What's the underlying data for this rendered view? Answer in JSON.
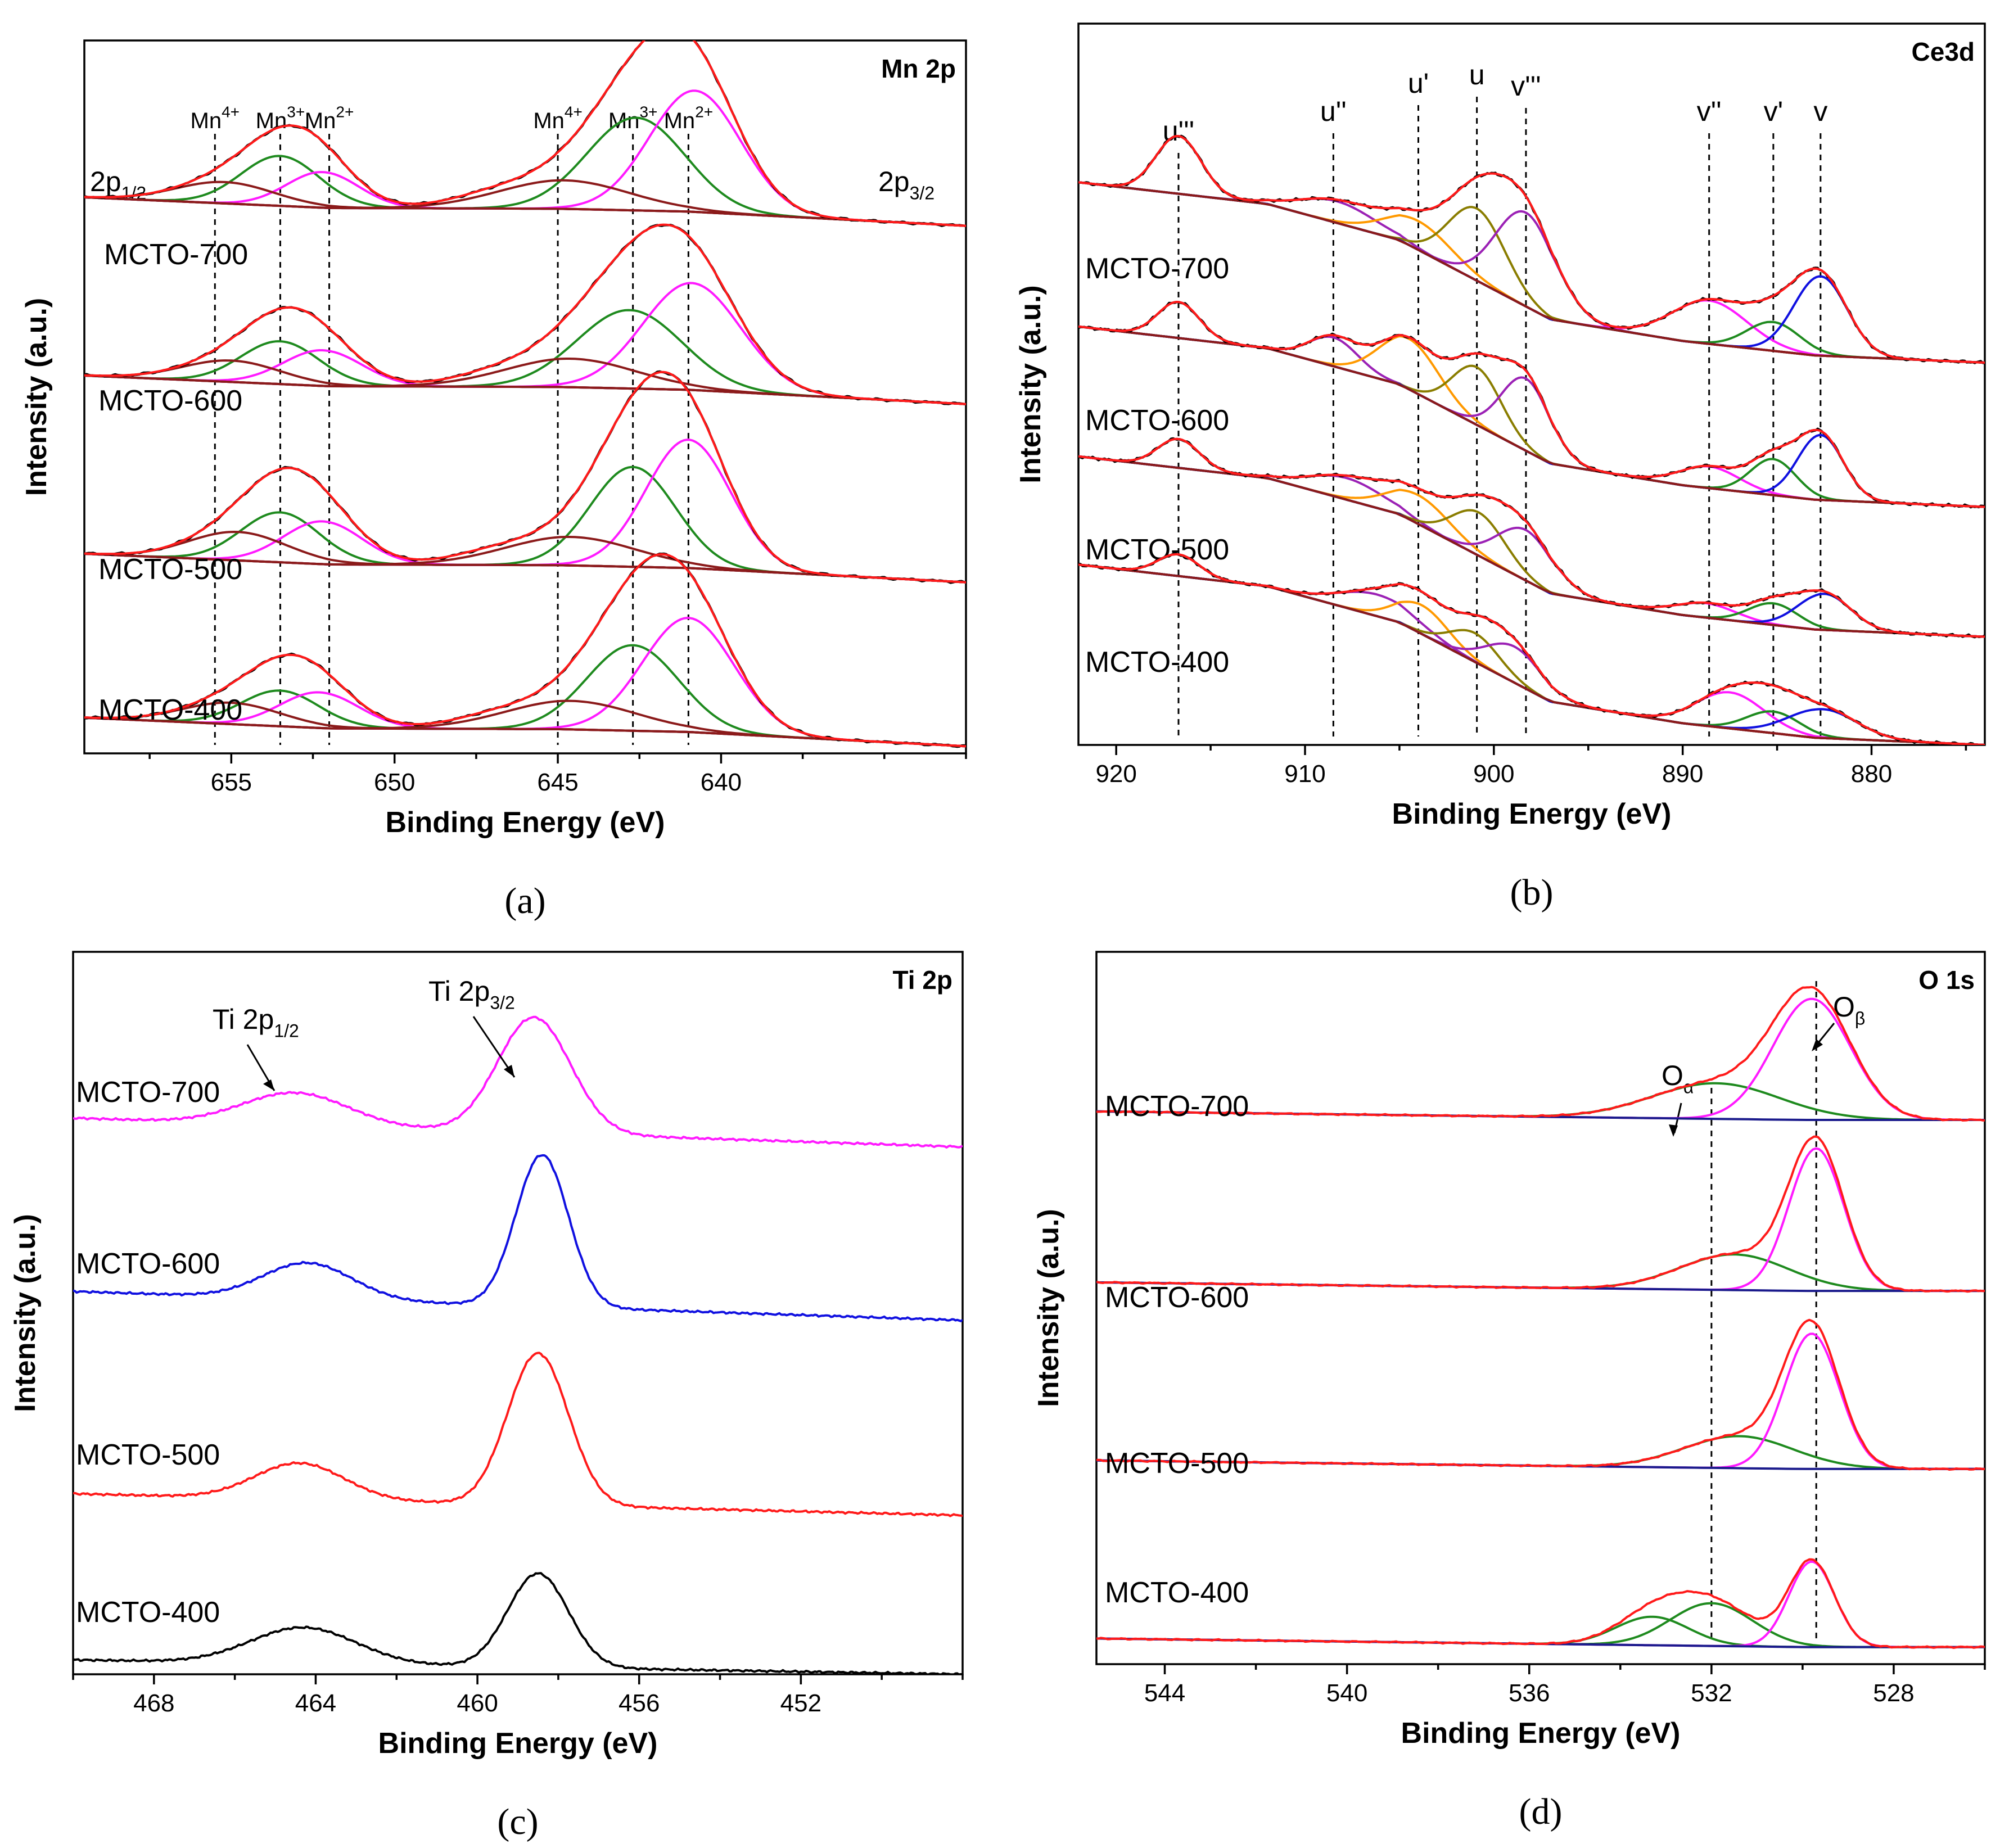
{
  "colors": {
    "black": "#000000",
    "red": "#ff1a1a",
    "green": "#1e8a1e",
    "magenta": "#ff1aff",
    "brown": "#8b1a1a",
    "orange": "#ff9900",
    "olive": "#8a7d00",
    "purple": "#9b21b5",
    "blue": "#1010e0",
    "darkblue": "#1a1a8c",
    "annot_red": "#e8000b"
  },
  "chart_data": [
    {
      "id": "a",
      "type": "line",
      "title": "Mn 2p",
      "caption": "(a)",
      "xlabel": "Binding Energy (eV)",
      "ylabel": "Intensity (a.u.)",
      "xlim": [
        659.5,
        632.5
      ],
      "ylim": [
        0,
        100
      ],
      "xticks": [
        655,
        650,
        645,
        640
      ],
      "samples": [
        "MCTO-700",
        "MCTO-600",
        "MCTO-500",
        "MCTO-400"
      ],
      "offsets": [
        76,
        51,
        26,
        3
      ],
      "annotations": [
        {
          "base": "Mn",
          "sup": "4+",
          "x": 655.5
        },
        {
          "base": "Mn",
          "sup": "3+",
          "x": 653.5
        },
        {
          "base": "Mn",
          "sup": "2+",
          "x": 652.0
        },
        {
          "base": "Mn",
          "sup": "4+",
          "x": 645.0
        },
        {
          "base": "Mn",
          "sup": "3+",
          "x": 642.7
        },
        {
          "base": "Mn",
          "sup": "2+",
          "x": 641.0
        }
      ],
      "orbital_labels": [
        {
          "base": "2p",
          "sub": "1/2"
        },
        {
          "base": "2p",
          "sub": "3/2"
        }
      ],
      "series": [
        {
          "name": "MCTO-700",
          "baseline": [
            [
              659.5,
              2
            ],
            [
              652,
              0.5
            ],
            [
              645,
              0.4
            ],
            [
              641,
              0
            ],
            [
              632.5,
              -2
            ]
          ],
          "components": [
            {
              "color": "green",
              "center": 653.5,
              "height": 7,
              "width": 1.2
            },
            {
              "color": "magenta",
              "center": 652.2,
              "height": 5,
              "width": 1.1
            },
            {
              "color": "brown",
              "center": 655.2,
              "height": 3,
              "width": 1.5
            },
            {
              "color": "green",
              "center": 642.6,
              "height": 13,
              "width": 1.5
            },
            {
              "color": "magenta",
              "center": 640.8,
              "height": 17,
              "width": 1.4
            },
            {
              "color": "brown",
              "center": 644.8,
              "height": 4,
              "width": 2.0
            }
          ]
        },
        {
          "name": "MCTO-600",
          "baseline": [
            [
              659.5,
              2
            ],
            [
              652,
              0.5
            ],
            [
              645,
              0.4
            ],
            [
              641,
              0
            ],
            [
              632.5,
              -2
            ]
          ],
          "components": [
            {
              "color": "green",
              "center": 653.5,
              "height": 6,
              "width": 1.2
            },
            {
              "color": "magenta",
              "center": 652.2,
              "height": 5,
              "width": 1.2
            },
            {
              "color": "brown",
              "center": 655.0,
              "height": 3,
              "width": 1.5
            },
            {
              "color": "green",
              "center": 642.8,
              "height": 11,
              "width": 1.6
            },
            {
              "color": "magenta",
              "center": 640.9,
              "height": 15,
              "width": 1.5
            },
            {
              "color": "brown",
              "center": 644.6,
              "height": 4,
              "width": 2.0
            }
          ]
        },
        {
          "name": "MCTO-500",
          "baseline": [
            [
              659.5,
              2
            ],
            [
              652,
              0.5
            ],
            [
              645,
              0.4
            ],
            [
              641,
              0
            ],
            [
              632.5,
              -2
            ]
          ],
          "components": [
            {
              "color": "green",
              "center": 653.5,
              "height": 7,
              "width": 1.2
            },
            {
              "color": "magenta",
              "center": 652.2,
              "height": 6,
              "width": 1.2
            },
            {
              "color": "brown",
              "center": 654.8,
              "height": 4,
              "width": 1.5
            },
            {
              "color": "green",
              "center": 642.7,
              "height": 14,
              "width": 1.3
            },
            {
              "color": "magenta",
              "center": 641.0,
              "height": 18,
              "width": 1.3
            },
            {
              "color": "brown",
              "center": 644.6,
              "height": 4,
              "width": 2.0
            }
          ]
        },
        {
          "name": "MCTO-400",
          "baseline": [
            [
              659.5,
              2
            ],
            [
              652,
              0.5
            ],
            [
              645,
              0.4
            ],
            [
              641,
              0
            ],
            [
              632.5,
              -2
            ]
          ],
          "components": [
            {
              "color": "green",
              "center": 653.5,
              "height": 5,
              "width": 1.2
            },
            {
              "color": "magenta",
              "center": 652.3,
              "height": 5,
              "width": 1.2
            },
            {
              "color": "brown",
              "center": 655.0,
              "height": 3,
              "width": 1.5
            },
            {
              "color": "green",
              "center": 642.7,
              "height": 12,
              "width": 1.4
            },
            {
              "color": "magenta",
              "center": 641.0,
              "height": 16,
              "width": 1.4
            },
            {
              "color": "brown",
              "center": 644.6,
              "height": 4,
              "width": 2.0
            }
          ]
        }
      ]
    },
    {
      "id": "b",
      "type": "line",
      "title": "Ce3d",
      "caption": "(b)",
      "xlabel": "Binding Energy (eV)",
      "ylabel": "Intensity (a.u.)",
      "xlim": [
        922,
        874
      ],
      "ylim": [
        0,
        100
      ],
      "xticks": [
        920,
        910,
        900,
        890,
        880
      ],
      "samples": [
        "MCTO-700",
        "MCTO-600",
        "MCTO-500",
        "MCTO-400"
      ],
      "offsets": [
        53,
        33,
        15,
        0
      ],
      "annotations": [
        {
          "label": "u'''",
          "x": 916.7,
          "red": false
        },
        {
          "label": "u''",
          "x": 908.5,
          "red": false
        },
        {
          "label": "u'",
          "x": 904.0,
          "red": true
        },
        {
          "label": "u",
          "x": 900.9,
          "red": false
        },
        {
          "label": "v'''",
          "x": 898.3,
          "red": false
        },
        {
          "label": "v''",
          "x": 888.6,
          "red": false
        },
        {
          "label": "v'",
          "x": 885.2,
          "red": true
        },
        {
          "label": "v",
          "x": 882.7,
          "red": false
        }
      ],
      "series": [
        {
          "name": "MCTO-700",
          "baseline": [
            [
              922,
              25
            ],
            [
              912,
              22
            ],
            [
              905,
              17
            ],
            [
              897,
              6
            ],
            [
              890,
              3
            ],
            [
              883,
              1
            ],
            [
              874,
              0
            ]
          ],
          "components": [
            {
              "color": "brown",
              "center": 916.7,
              "height": 8,
              "width": 1.2
            },
            {
              "color": "purple",
              "center": 908.3,
              "height": 3,
              "width": 2.0
            },
            {
              "color": "orange",
              "center": 904.0,
              "height": 4,
              "width": 1.8
            },
            {
              "color": "olive",
              "center": 900.9,
              "height": 10,
              "width": 1.5
            },
            {
              "color": "purple",
              "center": 898.3,
              "height": 13,
              "width": 1.6
            },
            {
              "color": "magenta",
              "center": 888.6,
              "height": 6,
              "width": 2.0
            },
            {
              "color": "green",
              "center": 885.2,
              "height": 4,
              "width": 1.4
            },
            {
              "color": "blue",
              "center": 882.7,
              "height": 11,
              "width": 1.4
            }
          ]
        },
        {
          "name": "MCTO-600",
          "baseline": [
            [
              922,
              25
            ],
            [
              912,
              22
            ],
            [
              905,
              17
            ],
            [
              897,
              6
            ],
            [
              890,
              3
            ],
            [
              883,
              1
            ],
            [
              874,
              0
            ]
          ],
          "components": [
            {
              "color": "brown",
              "center": 916.7,
              "height": 5,
              "width": 1.1
            },
            {
              "color": "purple",
              "center": 908.5,
              "height": 4,
              "width": 1.3
            },
            {
              "color": "orange",
              "center": 904.5,
              "height": 7,
              "width": 1.6
            },
            {
              "color": "olive",
              "center": 900.9,
              "height": 8,
              "width": 1.3
            },
            {
              "color": "purple",
              "center": 898.3,
              "height": 10,
              "width": 1.3
            },
            {
              "color": "magenta",
              "center": 888.6,
              "height": 3,
              "width": 1.6
            },
            {
              "color": "green",
              "center": 885.2,
              "height": 5,
              "width": 1.2
            },
            {
              "color": "blue",
              "center": 882.7,
              "height": 9,
              "width": 1.2
            }
          ]
        },
        {
          "name": "MCTO-500",
          "baseline": [
            [
              922,
              25
            ],
            [
              912,
              22
            ],
            [
              905,
              17
            ],
            [
              897,
              6
            ],
            [
              890,
              3
            ],
            [
              883,
              1
            ],
            [
              874,
              0
            ]
          ],
          "components": [
            {
              "color": "brown",
              "center": 916.7,
              "height": 4,
              "width": 1.1
            },
            {
              "color": "purple",
              "center": 907.8,
              "height": 3,
              "width": 2.0
            },
            {
              "color": "orange",
              "center": 904.0,
              "height": 4,
              "width": 1.7
            },
            {
              "color": "olive",
              "center": 900.8,
              "height": 6,
              "width": 1.4
            },
            {
              "color": "purple",
              "center": 898.3,
              "height": 7,
              "width": 1.5
            },
            {
              "color": "magenta",
              "center": 888.8,
              "height": 2,
              "width": 1.6
            },
            {
              "color": "green",
              "center": 885.2,
              "height": 3,
              "width": 1.3
            },
            {
              "color": "blue",
              "center": 882.5,
              "height": 5,
              "width": 1.4
            }
          ]
        },
        {
          "name": "MCTO-400",
          "baseline": [
            [
              922,
              25
            ],
            [
              912,
              22
            ],
            [
              905,
              17
            ],
            [
              897,
              6
            ],
            [
              890,
              3
            ],
            [
              883,
              1
            ],
            [
              874,
              0
            ]
          ],
          "components": [
            {
              "color": "brown",
              "center": 916.7,
              "height": 3,
              "width": 1.1
            },
            {
              "color": "purple",
              "center": 906.2,
              "height": 3,
              "width": 2.0
            },
            {
              "color": "orange",
              "center": 903.8,
              "height": 4,
              "width": 1.4
            },
            {
              "color": "olive",
              "center": 901.0,
              "height": 4,
              "width": 1.3
            },
            {
              "color": "purple",
              "center": 898.9,
              "height": 5,
              "width": 1.5
            },
            {
              "color": "magenta",
              "center": 887.5,
              "height": 5,
              "width": 1.8
            },
            {
              "color": "green",
              "center": 885.2,
              "height": 3,
              "width": 1.4
            },
            {
              "color": "blue",
              "center": 882.6,
              "height": 4,
              "width": 1.8
            }
          ]
        }
      ]
    },
    {
      "id": "c",
      "type": "line",
      "title": "Ti 2p",
      "caption": "(c)",
      "xlabel": "Binding Energy (eV)",
      "ylabel": "Intensity (a.u.)",
      "xlim": [
        470,
        448
      ],
      "ylim": [
        0,
        100
      ],
      "xticks": [
        468,
        464,
        460,
        456,
        452
      ],
      "peak_labels": [
        {
          "base": "Ti 2p",
          "sub": "1/2"
        },
        {
          "base": "Ti 2p",
          "sub": "3/2"
        }
      ],
      "series": [
        {
          "name": "MCTO-700",
          "color": "magenta",
          "offset": 73,
          "start": 77,
          "peaks": [
            {
              "center": 464.5,
              "height": 4.5,
              "width": 1.3
            },
            {
              "center": 458.6,
              "height": 16,
              "width": 0.9
            }
          ]
        },
        {
          "name": "MCTO-600",
          "color": "blue",
          "offset": 49,
          "start": 53,
          "peaks": [
            {
              "center": 464.2,
              "height": 5,
              "width": 1.1
            },
            {
              "center": 458.4,
              "height": 21,
              "width": 0.65
            }
          ]
        },
        {
          "name": "MCTO-500",
          "color": "red",
          "offset": 22,
          "start": 25,
          "peaks": [
            {
              "center": 464.4,
              "height": 5,
              "width": 1.1
            },
            {
              "center": 458.5,
              "height": 21,
              "width": 0.75
            }
          ]
        },
        {
          "name": "MCTO-400",
          "color": "black",
          "offset": 0,
          "start": 2,
          "peaks": [
            {
              "center": 464.3,
              "height": 5,
              "width": 1.3
            },
            {
              "center": 458.5,
              "height": 13,
              "width": 0.75
            }
          ]
        }
      ]
    },
    {
      "id": "d",
      "type": "line",
      "title": "O 1s",
      "caption": "(d)",
      "xlabel": "Binding Energy (eV)",
      "ylabel": "Intensity (a.u.)",
      "xlim": [
        545.5,
        526
      ],
      "ylim": [
        0,
        100
      ],
      "xticks": [
        544,
        540,
        536,
        532,
        528
      ],
      "markers": [
        {
          "base": "O",
          "sub": "α",
          "x": 532.0
        },
        {
          "base": "O",
          "sub": "β",
          "x": 529.7
        }
      ],
      "series": [
        {
          "name": "MCTO-700",
          "offset": 76,
          "components": [
            {
              "color": "green",
              "center": 531.9,
              "height": 5,
              "width": 1.4
            },
            {
              "color": "magenta",
              "center": 529.8,
              "height": 17,
              "width": 0.85
            }
          ]
        },
        {
          "name": "MCTO-600",
          "offset": 52,
          "components": [
            {
              "color": "green",
              "center": 531.5,
              "height": 5,
              "width": 1.2
            },
            {
              "color": "magenta",
              "center": 529.7,
              "height": 20,
              "width": 0.6
            }
          ]
        },
        {
          "name": "MCTO-500",
          "offset": 27,
          "components": [
            {
              "color": "green",
              "center": 531.4,
              "height": 4.5,
              "width": 1.2
            },
            {
              "color": "magenta",
              "center": 529.8,
              "height": 19,
              "width": 0.6
            }
          ]
        },
        {
          "name": "MCTO-400",
          "offset": 2,
          "components": [
            {
              "color": "green",
              "center": 533.3,
              "height": 4,
              "width": 0.8
            },
            {
              "color": "green",
              "center": 532.0,
              "height": 6,
              "width": 0.9
            },
            {
              "color": "magenta",
              "center": 529.8,
              "height": 12,
              "width": 0.5
            }
          ]
        }
      ]
    }
  ]
}
